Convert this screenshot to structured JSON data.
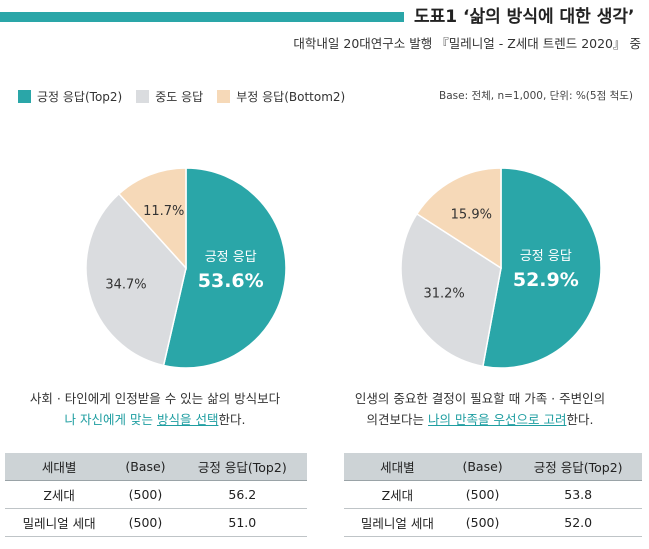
{
  "header": {
    "title": "도표1 ‘삶의 방식에 대한 생각’",
    "source": "대학내일 20대연구소 발행 『밀레니얼 - Z세대 트렌드 2020』 중"
  },
  "legend": {
    "items": [
      {
        "label": "긍정 응답(Top2)",
        "color": "#2aa6a8"
      },
      {
        "label": "중도 응답",
        "color": "#dadcdf"
      },
      {
        "label": "부정 응답(Bottom2)",
        "color": "#f6d9b8"
      }
    ],
    "base_note": "Base: 전체, n=1,000, 단위: %(5점 척도)"
  },
  "chart_data": [
    {
      "type": "pie",
      "slices": [
        {
          "name": "긍정 응답",
          "value": 53.6,
          "label": "53.6%",
          "color": "#2aa6a8"
        },
        {
          "name": "중도 응답",
          "value": 34.7,
          "label": "34.7%",
          "color": "#dadcdf"
        },
        {
          "name": "부정 응답",
          "value": 11.7,
          "label": "11.7%",
          "color": "#f6d9b8"
        }
      ],
      "center_label": "긍정 응답"
    },
    {
      "type": "pie",
      "slices": [
        {
          "name": "긍정 응답",
          "value": 52.9,
          "label": "52.9%",
          "color": "#2aa6a8"
        },
        {
          "name": "중도 응답",
          "value": 31.2,
          "label": "31.2%",
          "color": "#dadcdf"
        },
        {
          "name": "부정 응답",
          "value": 15.9,
          "label": "15.9%",
          "color": "#f6d9b8"
        }
      ],
      "center_label": "긍정 응답"
    }
  ],
  "captions": {
    "left": {
      "line1": "사회 · 타인에게 인정받을 수 있는 삶의 방식보다",
      "line2_a": "나 자신에게 맞는 ",
      "line2_b": "방식을 선택",
      "line2_c": "한다."
    },
    "right": {
      "line1": "인생의 중요한 결정이 필요할 때 가족 · 주변인의",
      "line2_a": "의견보다는 ",
      "line2_b": "나의 만족을 우선으로 고려",
      "line2_c": "한다."
    }
  },
  "tables": {
    "headers": [
      "세대별",
      "(Base)",
      "긍정 응답(Top2)"
    ],
    "left": {
      "rows": [
        [
          "Z세대",
          "(500)",
          "56.2"
        ],
        [
          "밀레니얼 세대",
          "(500)",
          "51.0"
        ]
      ]
    },
    "right": {
      "rows": [
        [
          "Z세대",
          "(500)",
          "53.8"
        ],
        [
          "밀레니얼 세대",
          "(500)",
          "52.0"
        ]
      ]
    }
  }
}
